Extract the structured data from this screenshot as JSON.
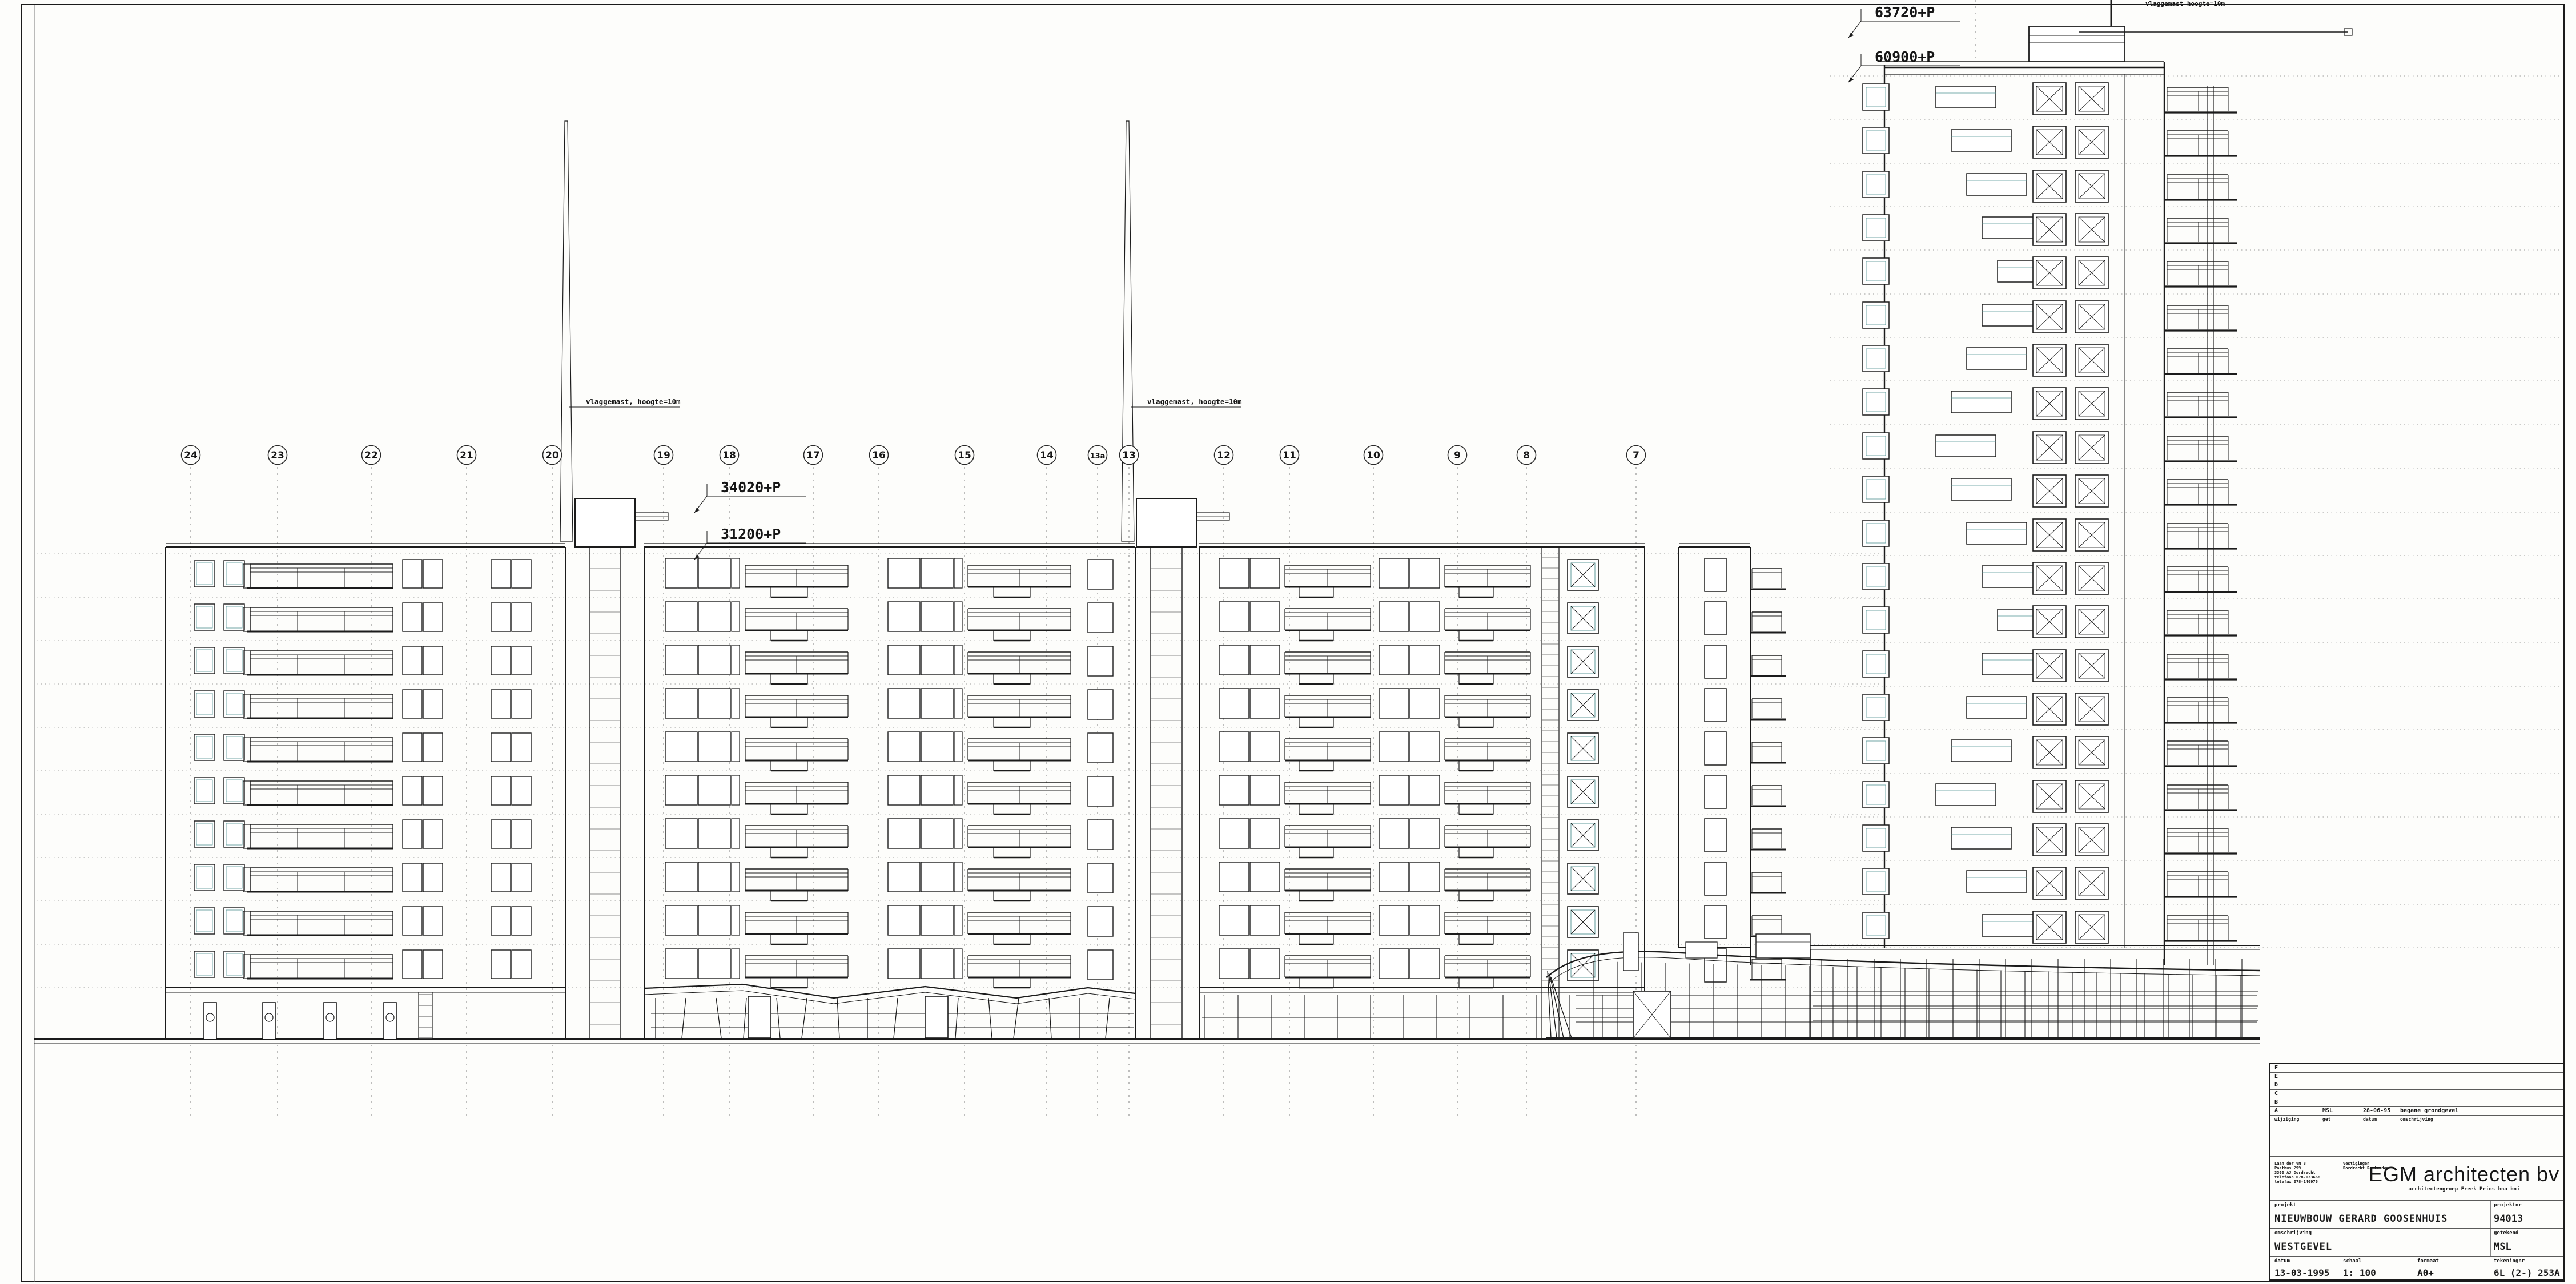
{
  "drawing": {
    "grid_bubbles": [
      "24",
      "23",
      "22",
      "21",
      "20",
      "19",
      "18",
      "17",
      "16",
      "15",
      "14",
      "13a",
      "13",
      "12",
      "11",
      "10",
      "9",
      "8",
      "7"
    ],
    "elevation_markers": [
      {
        "label": "63720+P"
      },
      {
        "label": "60900+P"
      },
      {
        "label": "34020+P"
      },
      {
        "label": "31200+P"
      }
    ],
    "annotations": {
      "flagpole_left": "vlaggemast, hoogte=10m",
      "flagpole_right": "vlaggemast, hoogte=10m",
      "flagpole_tower": "vlaggemast hoogte=10m"
    }
  },
  "title_block": {
    "revision": {
      "empty_codes": [
        "F",
        "E",
        "D",
        "C",
        "B"
      ],
      "row_a": {
        "code": "A",
        "by": "MSL",
        "date": "28-06-95",
        "description": "begane grondgevel"
      },
      "headers": {
        "change": "wijziging",
        "by": "get",
        "date": "datum",
        "description": "omschrijving"
      }
    },
    "firm": {
      "name": "EGM architecten bv",
      "subtitle": "architectengroep Freek Prins bna bni",
      "address_lines": [
        "Laan der VN 8",
        "Postbus 299",
        "3300 AJ Dordrecht",
        "telefoon 078-133666",
        "telefax 078-140976"
      ],
      "offices_label": "vestigingen",
      "offices": "Dordrecht Rotterdam"
    },
    "fields": {
      "project_label": "projekt",
      "project": "NIEUWBOUW GERARD GOOSENHUIS",
      "projectnr_label": "projektnr",
      "projectnr": "94013",
      "description_label": "omschrijving",
      "description": "WESTGEVEL",
      "drawn_label": "getekend",
      "drawn": "MSL",
      "date_label": "datum",
      "date": "13-03-1995",
      "scale_label": "schaal",
      "scale": "1: 100",
      "format_label": "formaat",
      "format": "A0+",
      "drawingnr_label": "tekeningnr",
      "drawingnr": "6L (2-) 253A"
    }
  },
  "colors": {
    "line": "#1b1b1b",
    "faint": "#9a9a9a",
    "accent_teal": "#4d9090",
    "paper": "#fdfdfb"
  }
}
